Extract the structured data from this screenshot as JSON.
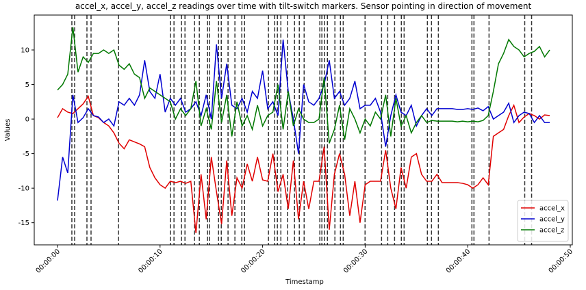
{
  "chart_data": {
    "type": "line",
    "title": "accel_x, accel_y, accel_z readings over time with tilt-switch markers. Sensor pointing in direction of movement",
    "x_label": "Timestamp",
    "y_label": "Values",
    "x": [
      0,
      0.5,
      1,
      1.5,
      2,
      2.5,
      3,
      3.5,
      4,
      4.5,
      5,
      5.5,
      6,
      6.5,
      7,
      7.5,
      8,
      8.5,
      9,
      9.5,
      10,
      10.5,
      11,
      11.5,
      12,
      12.5,
      13,
      13.5,
      14,
      14.5,
      15,
      15.5,
      16,
      16.5,
      17,
      17.5,
      18,
      18.5,
      19,
      19.5,
      20,
      20.5,
      21,
      21.5,
      22,
      22.5,
      23,
      23.5,
      24,
      24.5,
      25,
      25.5,
      26,
      26.5,
      27,
      27.5,
      28,
      28.5,
      29,
      29.5,
      30,
      30.5,
      31,
      31.5,
      32,
      32.5,
      33,
      33.5,
      34,
      34.5,
      35,
      35.5,
      36,
      36.5,
      37,
      37.5,
      38,
      38.5,
      39,
      39.5,
      40,
      40.5,
      41,
      41.5,
      42,
      42.5,
      43,
      43.5,
      44,
      44.5,
      45,
      45.5,
      46,
      46.5,
      47,
      47.5,
      48
    ],
    "series": [
      {
        "name": "accel_x",
        "color": "#e00000",
        "values": [
          0.2,
          1.5,
          1.0,
          0.8,
          1.5,
          2.2,
          3.3,
          0.5,
          0.2,
          -0.5,
          -1.0,
          -2.0,
          -3.5,
          -4.3,
          -3.0,
          -3.3,
          -3.6,
          -4.0,
          -7.0,
          -8.5,
          -9.5,
          -10.0,
          -9.0,
          -9.2,
          -9.0,
          -9.3,
          -9.0,
          -16.5,
          -8.0,
          -14.5,
          -5.5,
          -10.5,
          -15.2,
          -6.0,
          -14.0,
          -8.5,
          -10.0,
          -6.5,
          -9.0,
          -5.5,
          -8.8,
          -9.0,
          -5.0,
          -10.5,
          -8.0,
          -13.0,
          -6.0,
          -14.5,
          -9.0,
          -13.0,
          -9.0,
          -9.0,
          -4.0,
          -16.0,
          -8.0,
          -5.0,
          -8.0,
          -14.0,
          -9.0,
          -15.0,
          -9.5,
          -9.0,
          -9.0,
          -9.0,
          -4.5,
          -10.0,
          -13.0,
          -7.0,
          -10.0,
          -5.5,
          -5.0,
          -8.0,
          -9.0,
          -9.0,
          -8.0,
          -9.2,
          -9.2,
          -9.2,
          -9.2,
          -9.3,
          -9.5,
          -10.0,
          -9.5,
          -8.5,
          -9.5,
          -2.5,
          -2.0,
          -1.5,
          0.5,
          2.0,
          -0.5,
          0.3,
          0.8,
          0.5,
          0.0,
          0.6,
          0.5
        ]
      },
      {
        "name": "accel_y",
        "color": "#0000d0",
        "values": [
          -11.8,
          -5.5,
          -7.8,
          3.5,
          -0.5,
          0.2,
          1.5,
          0.5,
          0.3,
          -0.5,
          0,
          -1.0,
          2.5,
          2.0,
          3.0,
          2.0,
          3.5,
          8.5,
          4.0,
          3.0,
          6.5,
          1.0,
          3.0,
          2.0,
          3.0,
          1.0,
          1.5,
          2.5,
          0.5,
          3.5,
          0,
          10.8,
          3.0,
          8.0,
          2.0,
          1.5,
          3.0,
          1.0,
          4.0,
          3.0,
          7.0,
          1.5,
          2.5,
          0.5,
          11.5,
          4.0,
          0,
          -5.0,
          5.0,
          2.5,
          2.0,
          3.0,
          5.0,
          8.5,
          3.0,
          4.0,
          2.0,
          3.0,
          5.5,
          1.5,
          2.0,
          2.0,
          3.0,
          1.0,
          -4.0,
          0.5,
          3.5,
          1.0,
          0.5,
          2.0,
          -1.0,
          0.5,
          1.5,
          0.5,
          1.5,
          1.5,
          1.5,
          1.5,
          1.4,
          1.4,
          1.5,
          1.4,
          1.6,
          1.2,
          1.8,
          0,
          0.5,
          1.0,
          2.3,
          -0.5,
          0.5,
          1.0,
          0.8,
          -0.5,
          0.5,
          -0.5,
          -0.5
        ]
      },
      {
        "name": "accel_z",
        "color": "#007800",
        "values": [
          4.2,
          5.0,
          6.5,
          13.3,
          6.8,
          9.0,
          8.2,
          9.5,
          9.5,
          10.0,
          9.5,
          10.0,
          7.8,
          7.2,
          8.0,
          6.5,
          6.0,
          3.0,
          4.5,
          4.0,
          3.5,
          3.0,
          2.5,
          0,
          1.5,
          0.5,
          1.5,
          5.5,
          -1.0,
          1.5,
          -1.5,
          5.5,
          -0.5,
          3.5,
          -2.5,
          2.5,
          -1.0,
          0.5,
          -1.5,
          2.0,
          -1.0,
          0.5,
          1.0,
          5.0,
          -1.5,
          4.0,
          -1.0,
          1.5,
          0,
          -0.5,
          -0.5,
          0,
          6.0,
          -3.5,
          -1.5,
          2.0,
          -3.0,
          1.5,
          0,
          -2.0,
          0,
          -1.0,
          1.0,
          0,
          3.5,
          -2.5,
          3.0,
          -1.0,
          0.5,
          -2.0,
          -0.5,
          0.5,
          -0.5,
          -0.2,
          -0.3,
          -0.3,
          -0.3,
          -0.3,
          -0.4,
          -0.3,
          -0.4,
          -0.3,
          -0.4,
          -0.2,
          0.5,
          4.0,
          8.0,
          9.5,
          11.5,
          10.5,
          10.0,
          9.0,
          9.5,
          9.8,
          10.5,
          9.0,
          10.0
        ]
      }
    ],
    "markers": [
      1.4,
      1.67,
      2.87,
      3.27,
      5.95,
      11.02,
      11.36,
      12.09,
      12.43,
      13.36,
      13.83,
      14.63,
      14.83,
      15.7,
      15.97,
      16.63,
      17.3,
      17.97,
      18.24,
      20.57,
      21.18,
      21.44,
      21.78,
      22.44,
      23.11,
      23.58,
      24.05,
      25.58,
      25.78,
      26.05,
      26.32,
      27.05,
      27.59,
      27.86,
      29.99,
      31.6,
      32.2,
      32.87,
      33.53,
      33.8,
      36.07,
      36.47,
      37.14,
      40.41,
      40.61,
      42.08,
      45.56,
      46.23
    ],
    "marker_color": "#333333",
    "xlim": [
      -2.27,
      50.2
    ],
    "xticks": [
      {
        "value": 0,
        "label": "00:00:00"
      },
      {
        "value": 10,
        "label": "00:00:10"
      },
      {
        "value": 20,
        "label": "00:00:20"
      },
      {
        "value": 30,
        "label": "00:00:30"
      },
      {
        "value": 40,
        "label": "00:00:40"
      },
      {
        "value": 50,
        "label": "00:00:50"
      }
    ],
    "ylim": [
      -18.2,
      15.05
    ],
    "yticks": [
      -15,
      -10,
      -5,
      0,
      5,
      10
    ],
    "grid": false,
    "legend": "lower right"
  }
}
